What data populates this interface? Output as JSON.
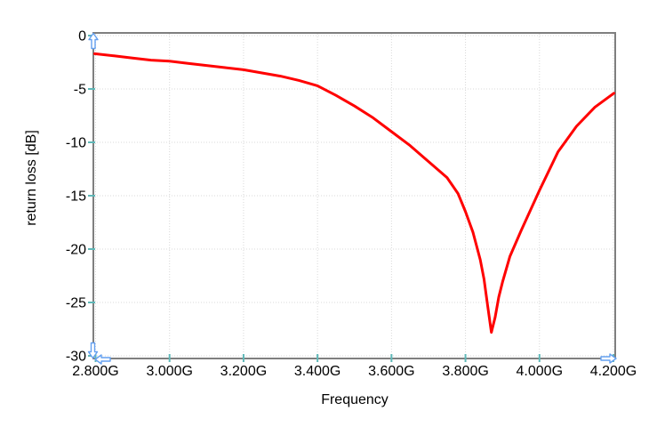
{
  "chart_data": {
    "type": "line",
    "title": "",
    "xlabel": "Frequency",
    "ylabel": "return loss [dB]",
    "xlim": [
      2.8,
      4.2
    ],
    "ylim": [
      -30,
      0
    ],
    "x_ticks": [
      2.8,
      3.0,
      3.2,
      3.4,
      3.6,
      3.8,
      4.0,
      4.2
    ],
    "x_tick_labels": [
      "2.800G",
      "3.000G",
      "3.200G",
      "3.400G",
      "3.600G",
      "3.800G",
      "4.000G",
      "4.200G"
    ],
    "y_ticks": [
      0,
      -5,
      -10,
      -15,
      -20,
      -25,
      -30
    ],
    "y_tick_labels": [
      "0",
      "-5",
      "-10",
      "-15",
      "-20",
      "-25",
      "-30"
    ],
    "grid": "dotted",
    "legend": "none",
    "series": [
      {
        "name": "return loss",
        "color": "#ff0000",
        "points": [
          [
            2.8,
            -1.7
          ],
          [
            2.85,
            -1.9
          ],
          [
            2.9,
            -2.1
          ],
          [
            2.95,
            -2.3
          ],
          [
            3.0,
            -2.4
          ],
          [
            3.05,
            -2.6
          ],
          [
            3.1,
            -2.8
          ],
          [
            3.15,
            -3.0
          ],
          [
            3.2,
            -3.2
          ],
          [
            3.25,
            -3.5
          ],
          [
            3.3,
            -3.8
          ],
          [
            3.35,
            -4.2
          ],
          [
            3.4,
            -4.7
          ],
          [
            3.45,
            -5.6
          ],
          [
            3.5,
            -6.6
          ],
          [
            3.55,
            -7.7
          ],
          [
            3.6,
            -9.0
          ],
          [
            3.65,
            -10.3
          ],
          [
            3.7,
            -11.8
          ],
          [
            3.75,
            -13.3
          ],
          [
            3.78,
            -14.8
          ],
          [
            3.8,
            -16.5
          ],
          [
            3.82,
            -18.4
          ],
          [
            3.84,
            -21.0
          ],
          [
            3.85,
            -22.8
          ],
          [
            3.86,
            -25.3
          ],
          [
            3.87,
            -27.8
          ],
          [
            3.88,
            -26.4
          ],
          [
            3.89,
            -24.5
          ],
          [
            3.9,
            -23.1
          ],
          [
            3.92,
            -20.7
          ],
          [
            3.95,
            -18.3
          ],
          [
            4.0,
            -14.5
          ],
          [
            4.05,
            -10.9
          ],
          [
            4.1,
            -8.5
          ],
          [
            4.15,
            -6.7
          ],
          [
            4.2,
            -5.4
          ]
        ]
      }
    ]
  },
  "colors": {
    "curve": "#ff0000",
    "axis_frame": "#7f7f7f",
    "tick_mark": "#5fb8b8",
    "gridline": "#d8d8d8",
    "text": "#000000",
    "scroll_arrow_stroke": "#64a0f0",
    "scroll_arrow_fill": "#ffffff",
    "background": "#ffffff"
  },
  "icons": {
    "top_left": "scroll-up-arrow-icon",
    "bottom_left_vertical": "scroll-down-arrow-icon",
    "bottom_left_horizontal": "scroll-left-arrow-icon",
    "bottom_right": "scroll-right-arrow-icon"
  }
}
